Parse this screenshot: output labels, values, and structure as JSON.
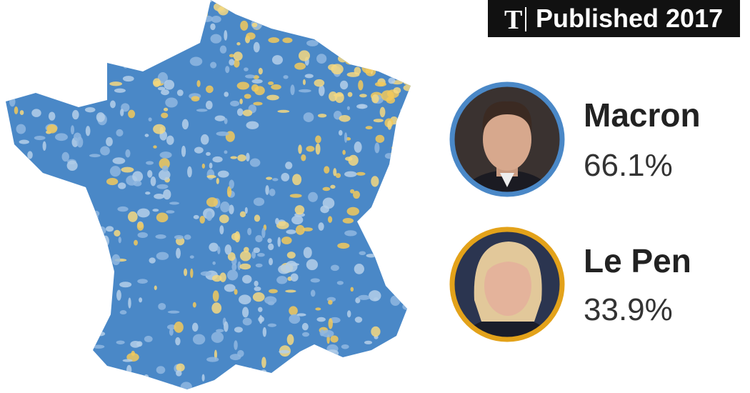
{
  "badge": {
    "text": "Published 2017"
  },
  "candidates": [
    {
      "name": "Macron",
      "share": "66.1%"
    },
    {
      "name": "Le Pen",
      "share": "33.9%"
    }
  ]
}
